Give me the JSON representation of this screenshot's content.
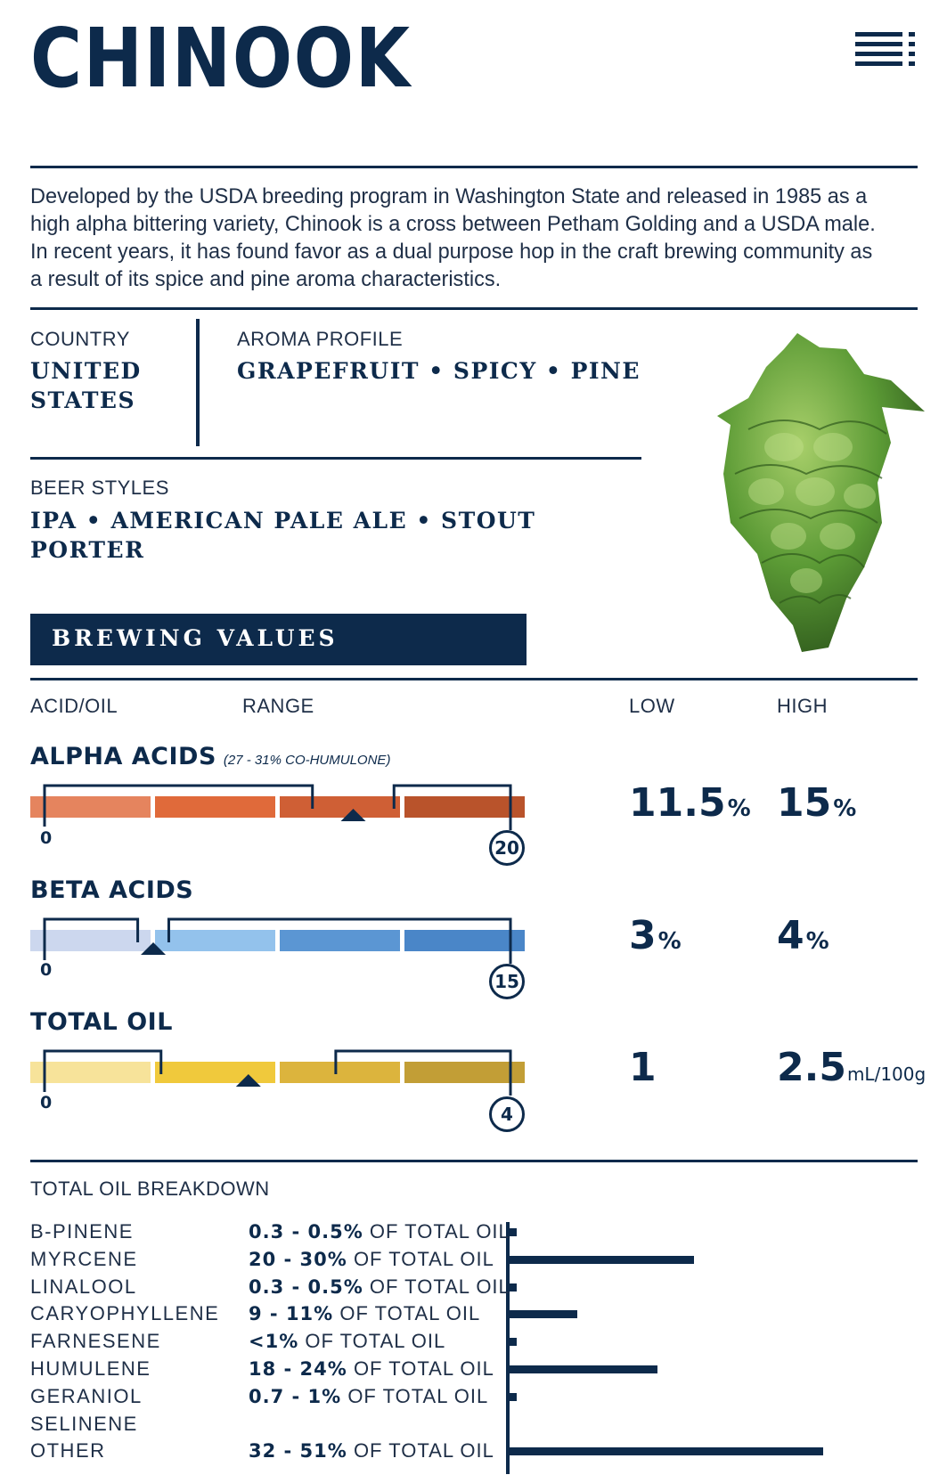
{
  "header": {
    "title": "CHINOOK",
    "menu_icon": "menu-icon"
  },
  "description": "Developed by the USDA breeding program in Washington State and released in 1985 as a high alpha bittering variety, Chinook is a cross between Petham Golding and a USDA male. In recent years, it has found favor as a dual purpose hop in the craft brewing community as a result of its spice and pine aroma characteristics.",
  "country": {
    "label": "COUNTRY",
    "value_line1": "UNITED",
    "value_line2": "STATES"
  },
  "aroma": {
    "label": "AROMA PROFILE",
    "value": "GRAPEFRUIT • SPICY • PINE"
  },
  "beer_styles": {
    "label": "BEER STYLES",
    "line1": "IPA • AMERICAN PALE ALE • STOUT",
    "line2": "PORTER"
  },
  "brewing": {
    "banner": "BREWING VALUES",
    "col_acid": "ACID/OIL",
    "col_range": "RANGE",
    "col_low": "LOW",
    "col_high": "HIGH",
    "rows": [
      {
        "name": "ALPHA ACIDS",
        "note": "(27 - 31% CO-HUMULONE)",
        "min": "0",
        "max": "20",
        "max_value": 20,
        "low": "11.5",
        "high": "15",
        "unit_low": "%",
        "unit_high": "%",
        "range_low": 11.5,
        "range_high": 15,
        "colors": [
          "#e5845e",
          "#e06a3a",
          "#cf5f35",
          "#b9532b"
        ]
      },
      {
        "name": "BETA ACIDS",
        "note": "",
        "min": "0",
        "max": "15",
        "max_value": 15,
        "low": "3",
        "high": "4",
        "unit_low": "%",
        "unit_high": "%",
        "range_low": 3,
        "range_high": 4,
        "colors": [
          "#ccd7ee",
          "#93c2ec",
          "#5b96d3",
          "#4a86c8"
        ]
      },
      {
        "name": "TOTAL OIL",
        "note": "",
        "min": "0",
        "max": "4",
        "max_value": 4,
        "low": "1",
        "high": "2.5",
        "unit_low": "",
        "unit_high": "mL/100g",
        "range_low": 1,
        "range_high": 2.5,
        "colors": [
          "#f7e39a",
          "#f0c93c",
          "#dcb43d",
          "#c29e36"
        ]
      }
    ]
  },
  "oil_breakdown": {
    "label": "TOTAL OIL BREAKDOWN",
    "suffix": "OF TOTAL OIL",
    "items": [
      {
        "name": "B-PINENE",
        "range": "0.3 - 0.5%",
        "max_pct": 0.5
      },
      {
        "name": "MYRCENE",
        "range": "20 - 30%",
        "max_pct": 30
      },
      {
        "name": "LINALOOL",
        "range": "0.3 - 0.5%",
        "max_pct": 0.5
      },
      {
        "name": "CARYOPHYLLENE",
        "range": "9 - 11%",
        "max_pct": 11
      },
      {
        "name": "FARNESENE",
        "range": "<1%",
        "max_pct": 1
      },
      {
        "name": "HUMULENE",
        "range": "18 - 24%",
        "max_pct": 24
      },
      {
        "name": "GERANIOL",
        "range": "0.7 - 1%",
        "max_pct": 1
      },
      {
        "name": "SELINENE",
        "range": "",
        "max_pct": 0
      },
      {
        "name": "OTHER",
        "range": "32 - 51%",
        "max_pct": 51
      }
    ]
  }
}
